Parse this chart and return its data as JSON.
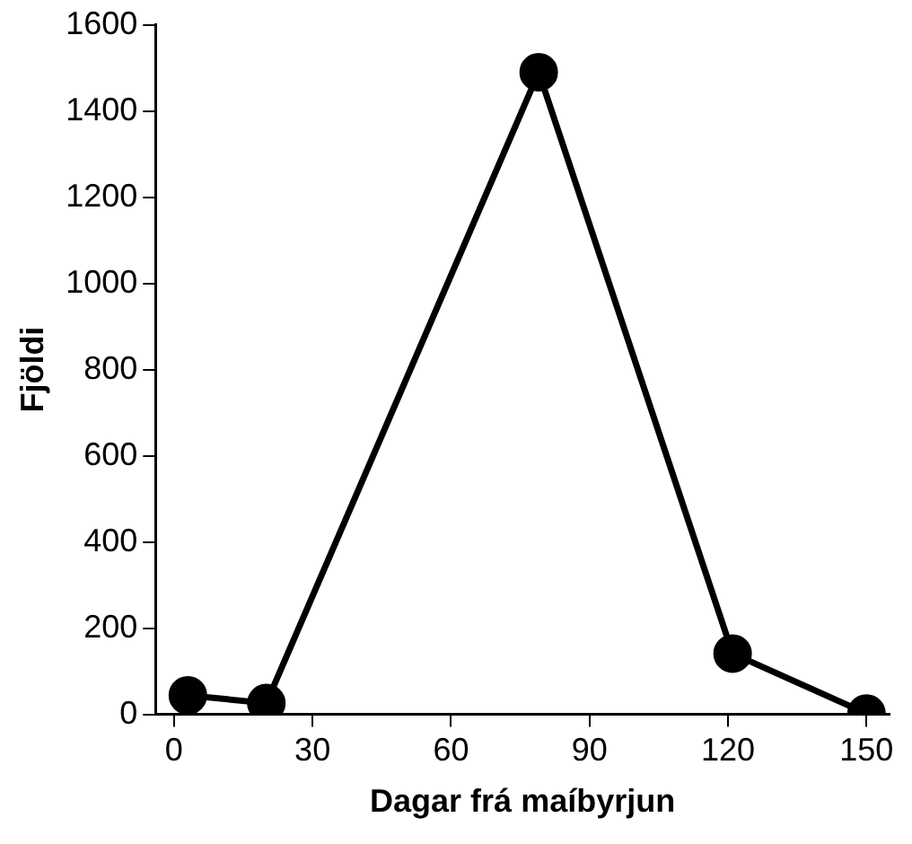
{
  "chart_data": {
    "type": "line",
    "xlabel": "Dagar frá maíbyrjun",
    "ylabel": "Fjöldi",
    "x": [
      3,
      20,
      79,
      121,
      150
    ],
    "series": [
      {
        "color": "#000000",
        "values": [
          44,
          26,
          1490,
          141,
          2
        ]
      }
    ],
    "xlim": [
      -4,
      155
    ],
    "xticks": [
      0,
      30,
      60,
      90,
      120,
      150
    ],
    "ylim": [
      0,
      1600
    ],
    "yticks": [
      0,
      200,
      400,
      600,
      800,
      1000,
      1200,
      1400,
      1600
    ],
    "grid": false,
    "legend": false,
    "marker": "circle",
    "line_style": "solid"
  }
}
